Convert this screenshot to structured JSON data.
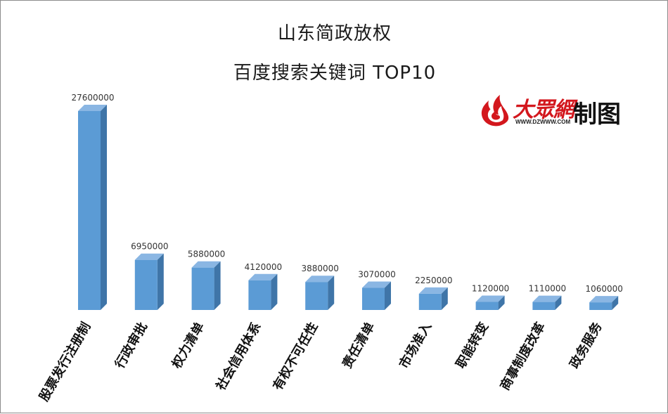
{
  "chart_data": {
    "type": "bar",
    "title": "山东简政放权",
    "subtitle": "百度搜索关键词 TOP10",
    "categories": [
      "股票发行注册制",
      "行政审批",
      "权力清单",
      "社会信用体系",
      "有权不可任性",
      "责任清单",
      "市场准入",
      "职能转变",
      "商事制度改革",
      "政务服务"
    ],
    "values": [
      27600000,
      6950000,
      5880000,
      4120000,
      3880000,
      3070000,
      2250000,
      1120000,
      1110000,
      1060000
    ],
    "value_labels": [
      "27600000",
      "6950000",
      "5880000",
      "4120000",
      "3880000",
      "3070000",
      "2250000",
      "1120000",
      "1110000",
      "1060000"
    ],
    "ylim": [
      0,
      27600000
    ],
    "grid": false,
    "legend": "none",
    "bar_style": "3d",
    "colors": {
      "bar_front": "#5b9bd5",
      "bar_top": "#8ab6e3",
      "bar_side": "#3f75a8"
    }
  },
  "logo": {
    "brand": "大眾網",
    "url": "WWW.DZWWW.COM",
    "suffix": "制图",
    "colors": {
      "brand": "#d3171d",
      "text": "#111111"
    }
  }
}
